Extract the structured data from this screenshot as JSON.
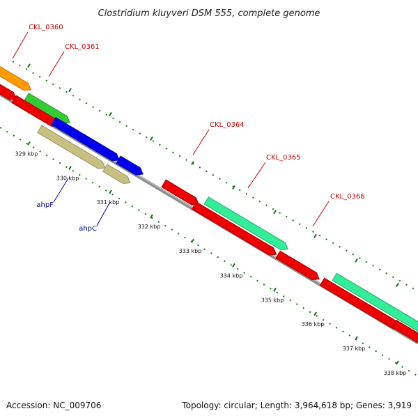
{
  "title": "Clostridium kluyveri DSM 555, complete genome",
  "footer": {
    "accession": "Accession: NC_009706",
    "summary": "Topology: circular; Length: 3,964,618 bp; Genes: 3,919"
  },
  "ruler": {
    "tick_labels": [
      "329 kbp",
      "330 kbp",
      "331 kbp",
      "332 kbp",
      "333 kbp",
      "334 kbp",
      "335 kbp",
      "336 kbp",
      "337 kbp",
      "338 kbp"
    ]
  },
  "gene_labels": [
    {
      "name": "CKL_0360",
      "color": "#cc0000"
    },
    {
      "name": "CKL_0361",
      "color": "#cc0000"
    },
    {
      "name": "CKL_0364",
      "color": "#cc0000"
    },
    {
      "name": "CKL_0365",
      "color": "#cc0000"
    },
    {
      "name": "CKL_0366",
      "color": "#cc0000"
    },
    {
      "name": "ahpF",
      "color": "#0000aa"
    },
    {
      "name": "ahpC",
      "color": "#0000aa"
    }
  ],
  "colors": {
    "backbone": "#8c8c8c",
    "cds_red": "#ee0000",
    "gene_green": "#33cc33",
    "gene_teal": "#33ee99",
    "gene_orange": "#ff9900",
    "gene_blue": "#0000ee",
    "gene_khaki": "#c8c080",
    "tick_green": "#117711"
  }
}
